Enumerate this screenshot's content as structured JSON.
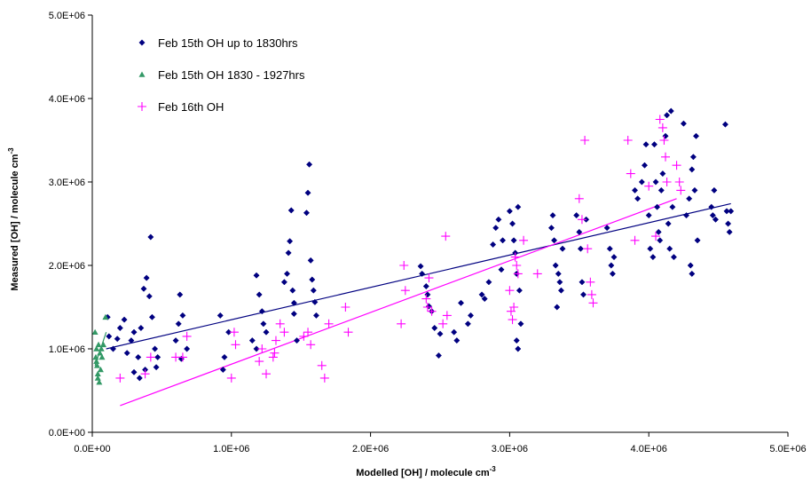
{
  "chart_data": {
    "type": "scatter",
    "title": "",
    "xlabel": "Modelled [OH] / molecule cm",
    "xlabel_sup": "-3",
    "ylabel": "Measured [OH] / molecule cm",
    "ylabel_sup": "-3",
    "xlim": [
      0,
      5000000
    ],
    "ylim": [
      0,
      5000000
    ],
    "x_ticks": [
      0,
      1000000,
      2000000,
      3000000,
      4000000,
      5000000
    ],
    "y_ticks": [
      0,
      1000000,
      2000000,
      3000000,
      4000000,
      5000000
    ],
    "x_tick_labels": [
      "0.0E+00",
      "1.0E+06",
      "2.0E+06",
      "3.0E+06",
      "4.0E+06",
      "5.0E+06"
    ],
    "y_tick_labels": [
      "0.0E+00",
      "1.0E+06",
      "2.0E+06",
      "3.0E+06",
      "4.0E+06",
      "5.0E+06"
    ],
    "grid": false,
    "legend_position": "top-left",
    "series": [
      {
        "name": "Feb 15th OH up to 1830hrs",
        "marker": "diamond",
        "color": "#000080",
        "points": [
          [
            110000,
            1380000
          ],
          [
            120000,
            1150000
          ],
          [
            150000,
            1000000
          ],
          [
            180000,
            1120000
          ],
          [
            200000,
            1250000
          ],
          [
            230000,
            1350000
          ],
          [
            250000,
            950000
          ],
          [
            280000,
            1100000
          ],
          [
            300000,
            1200000
          ],
          [
            330000,
            900000
          ],
          [
            350000,
            1250000
          ],
          [
            370000,
            1720000
          ],
          [
            390000,
            1850000
          ],
          [
            410000,
            1630000
          ],
          [
            420000,
            2340000
          ],
          [
            430000,
            1380000
          ],
          [
            450000,
            1000000
          ],
          [
            460000,
            780000
          ],
          [
            380000,
            750000
          ],
          [
            470000,
            900000
          ],
          [
            300000,
            720000
          ],
          [
            340000,
            650000
          ],
          [
            600000,
            1100000
          ],
          [
            620000,
            1300000
          ],
          [
            630000,
            1650000
          ],
          [
            650000,
            1400000
          ],
          [
            640000,
            880000
          ],
          [
            680000,
            1000000
          ],
          [
            920000,
            1400000
          ],
          [
            950000,
            900000
          ],
          [
            940000,
            750000
          ],
          [
            980000,
            1200000
          ],
          [
            1180000,
            1880000
          ],
          [
            1200000,
            1650000
          ],
          [
            1220000,
            1450000
          ],
          [
            1230000,
            1300000
          ],
          [
            1250000,
            1200000
          ],
          [
            1150000,
            1100000
          ],
          [
            1180000,
            1000000
          ],
          [
            1380000,
            1800000
          ],
          [
            1400000,
            1900000
          ],
          [
            1410000,
            2150000
          ],
          [
            1420000,
            2290000
          ],
          [
            1430000,
            2660000
          ],
          [
            1440000,
            1700000
          ],
          [
            1450000,
            1550000
          ],
          [
            1450000,
            1420000
          ],
          [
            1470000,
            1100000
          ],
          [
            1540000,
            2630000
          ],
          [
            1550000,
            2870000
          ],
          [
            1560000,
            3210000
          ],
          [
            1570000,
            2060000
          ],
          [
            1580000,
            1830000
          ],
          [
            1590000,
            1700000
          ],
          [
            1600000,
            1560000
          ],
          [
            1610000,
            1400000
          ],
          [
            2360000,
            1990000
          ],
          [
            2370000,
            1900000
          ],
          [
            2400000,
            1750000
          ],
          [
            2410000,
            1650000
          ],
          [
            2420000,
            1510000
          ],
          [
            2440000,
            1450000
          ],
          [
            2460000,
            1250000
          ],
          [
            2500000,
            1180000
          ],
          [
            2490000,
            920000
          ],
          [
            2600000,
            1200000
          ],
          [
            2620000,
            1100000
          ],
          [
            2650000,
            1550000
          ],
          [
            2700000,
            1300000
          ],
          [
            2720000,
            1400000
          ],
          [
            2800000,
            1650000
          ],
          [
            2820000,
            1600000
          ],
          [
            2850000,
            1800000
          ],
          [
            2880000,
            2250000
          ],
          [
            2900000,
            2450000
          ],
          [
            2920000,
            2550000
          ],
          [
            2950000,
            2300000
          ],
          [
            2940000,
            1950000
          ],
          [
            3000000,
            2650000
          ],
          [
            3020000,
            2500000
          ],
          [
            3030000,
            2300000
          ],
          [
            3040000,
            2150000
          ],
          [
            3050000,
            1900000
          ],
          [
            3060000,
            2700000
          ],
          [
            3070000,
            1700000
          ],
          [
            3050000,
            1100000
          ],
          [
            3060000,
            1000000
          ],
          [
            3080000,
            1300000
          ],
          [
            3300000,
            2450000
          ],
          [
            3310000,
            2600000
          ],
          [
            3320000,
            2300000
          ],
          [
            3330000,
            2000000
          ],
          [
            3350000,
            1900000
          ],
          [
            3360000,
            1800000
          ],
          [
            3370000,
            1700000
          ],
          [
            3340000,
            1500000
          ],
          [
            3380000,
            2200000
          ],
          [
            3480000,
            2600000
          ],
          [
            3500000,
            2400000
          ],
          [
            3510000,
            2200000
          ],
          [
            3520000,
            1800000
          ],
          [
            3530000,
            1650000
          ],
          [
            3550000,
            2550000
          ],
          [
            3700000,
            2450000
          ],
          [
            3720000,
            2200000
          ],
          [
            3730000,
            2000000
          ],
          [
            3740000,
            1900000
          ],
          [
            3750000,
            2100000
          ],
          [
            3900000,
            2900000
          ],
          [
            3920000,
            2800000
          ],
          [
            3950000,
            3000000
          ],
          [
            3970000,
            3200000
          ],
          [
            3980000,
            3450000
          ],
          [
            4000000,
            2600000
          ],
          [
            4010000,
            2200000
          ],
          [
            4030000,
            2100000
          ],
          [
            4040000,
            3450000
          ],
          [
            4050000,
            3000000
          ],
          [
            4060000,
            2700000
          ],
          [
            4070000,
            2400000
          ],
          [
            4080000,
            2300000
          ],
          [
            4090000,
            2900000
          ],
          [
            4100000,
            3100000
          ],
          [
            4120000,
            3550000
          ],
          [
            4130000,
            3800000
          ],
          [
            4140000,
            2500000
          ],
          [
            4150000,
            2200000
          ],
          [
            4160000,
            3850000
          ],
          [
            4170000,
            2700000
          ],
          [
            4180000,
            2100000
          ],
          [
            4250000,
            3700000
          ],
          [
            4270000,
            2600000
          ],
          [
            4290000,
            2800000
          ],
          [
            4310000,
            3150000
          ],
          [
            4320000,
            3300000
          ],
          [
            4330000,
            2900000
          ],
          [
            4340000,
            3550000
          ],
          [
            4350000,
            2300000
          ],
          [
            4300000,
            2000000
          ],
          [
            4310000,
            1900000
          ],
          [
            4450000,
            2700000
          ],
          [
            4460000,
            2600000
          ],
          [
            4470000,
            2900000
          ],
          [
            4480000,
            2550000
          ],
          [
            4550000,
            3690000
          ],
          [
            4560000,
            2650000
          ],
          [
            4570000,
            2500000
          ],
          [
            4580000,
            2400000
          ],
          [
            4590000,
            2650000
          ]
        ],
        "trendline": [
          [
            100000,
            1000000
          ],
          [
            4590000,
            2740000
          ]
        ]
      },
      {
        "name": "Feb 15th OH 1830 - 1927hrs",
        "marker": "triangle",
        "color": "#339966",
        "points": [
          [
            20000,
            1200000
          ],
          [
            25000,
            900000
          ],
          [
            30000,
            850000
          ],
          [
            35000,
            800000
          ],
          [
            40000,
            700000
          ],
          [
            45000,
            1050000
          ],
          [
            50000,
            600000
          ],
          [
            55000,
            950000
          ],
          [
            60000,
            750000
          ],
          [
            65000,
            1000000
          ],
          [
            80000,
            1050000
          ],
          [
            95000,
            1380000
          ],
          [
            40000,
            650000
          ],
          [
            30000,
            1000000
          ],
          [
            70000,
            900000
          ]
        ],
        "trendline": [
          [
            20000,
            800000
          ],
          [
            100000,
            1200000
          ]
        ]
      },
      {
        "name": "Feb 16th OH",
        "marker": "plus",
        "color": "#FF00FF",
        "points": [
          [
            200000,
            650000
          ],
          [
            380000,
            700000
          ],
          [
            420000,
            900000
          ],
          [
            600000,
            900000
          ],
          [
            650000,
            900000
          ],
          [
            680000,
            1150000
          ],
          [
            1000000,
            650000
          ],
          [
            1020000,
            1200000
          ],
          [
            1030000,
            1050000
          ],
          [
            1200000,
            850000
          ],
          [
            1220000,
            1000000
          ],
          [
            1250000,
            700000
          ],
          [
            1300000,
            900000
          ],
          [
            1310000,
            950000
          ],
          [
            1320000,
            1100000
          ],
          [
            1350000,
            1300000
          ],
          [
            1380000,
            1200000
          ],
          [
            1520000,
            1150000
          ],
          [
            1550000,
            1200000
          ],
          [
            1570000,
            1050000
          ],
          [
            1650000,
            800000
          ],
          [
            1670000,
            650000
          ],
          [
            1700000,
            1300000
          ],
          [
            1820000,
            1500000
          ],
          [
            1840000,
            1200000
          ],
          [
            2220000,
            1300000
          ],
          [
            2240000,
            2000000
          ],
          [
            2250000,
            1700000
          ],
          [
            2400000,
            1600000
          ],
          [
            2410000,
            1500000
          ],
          [
            2420000,
            1850000
          ],
          [
            2440000,
            1450000
          ],
          [
            2520000,
            1300000
          ],
          [
            2540000,
            2350000
          ],
          [
            2550000,
            1400000
          ],
          [
            3000000,
            1700000
          ],
          [
            3010000,
            1450000
          ],
          [
            3020000,
            1350000
          ],
          [
            3030000,
            1500000
          ],
          [
            3040000,
            2100000
          ],
          [
            3050000,
            2000000
          ],
          [
            3060000,
            1900000
          ],
          [
            3100000,
            2300000
          ],
          [
            3200000,
            1900000
          ],
          [
            3500000,
            2800000
          ],
          [
            3520000,
            2550000
          ],
          [
            3540000,
            3500000
          ],
          [
            3560000,
            2200000
          ],
          [
            3580000,
            1800000
          ],
          [
            3590000,
            1650000
          ],
          [
            3600000,
            1550000
          ],
          [
            3850000,
            3500000
          ],
          [
            3870000,
            3100000
          ],
          [
            3900000,
            2300000
          ],
          [
            4000000,
            2950000
          ],
          [
            4050000,
            2350000
          ],
          [
            4080000,
            3750000
          ],
          [
            4100000,
            3650000
          ],
          [
            4110000,
            3500000
          ],
          [
            4120000,
            3300000
          ],
          [
            4130000,
            3000000
          ],
          [
            4200000,
            3200000
          ],
          [
            4220000,
            3000000
          ],
          [
            4230000,
            2900000
          ]
        ],
        "trendline": [
          [
            200000,
            320000
          ],
          [
            4200000,
            2800000
          ]
        ]
      }
    ]
  }
}
